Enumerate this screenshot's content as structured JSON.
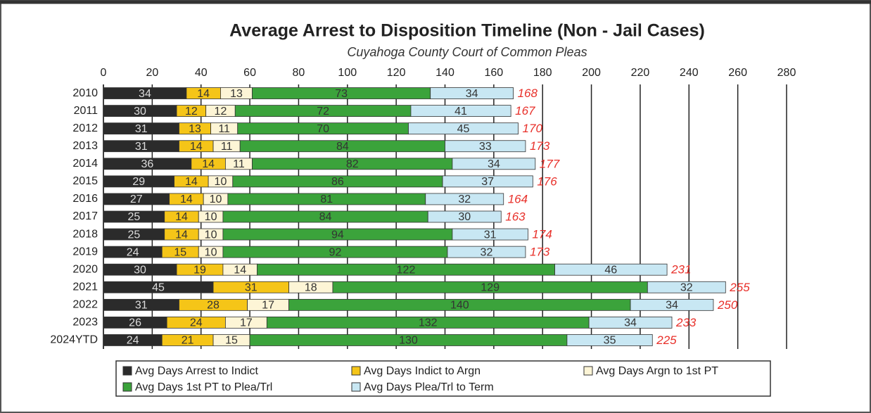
{
  "chart_data": {
    "type": "stacked-bar-horizontal",
    "title": "Average Arrest to Disposition Timeline (Non - Jail Cases)",
    "subtitle": "Cuyahoga County Court of Common Pleas",
    "categories": [
      "2010",
      "2011",
      "2012",
      "2013",
      "2014",
      "2015",
      "2016",
      "2017",
      "2018",
      "2019",
      "2020",
      "2021",
      "2022",
      "2023",
      "2024YTD"
    ],
    "series": [
      {
        "name": "Avg Days Arrest to Indict",
        "color": "#2b2b2b",
        "values": [
          34,
          30,
          31,
          31,
          36,
          29,
          27,
          25,
          25,
          24,
          30,
          45,
          31,
          26,
          24
        ]
      },
      {
        "name": "Avg Days Indict to Argn",
        "color": "#f5c518",
        "values": [
          14,
          12,
          13,
          14,
          14,
          14,
          14,
          14,
          14,
          15,
          19,
          31,
          28,
          24,
          21
        ]
      },
      {
        "name": "Avg Days Argn to 1st PT",
        "color": "#fdf5d6",
        "values": [
          13,
          12,
          11,
          11,
          11,
          10,
          10,
          10,
          10,
          10,
          14,
          18,
          17,
          17,
          15
        ]
      },
      {
        "name": "Avg Days 1st PT to Plea/Trl",
        "color": "#3ba33b",
        "values": [
          73,
          72,
          70,
          84,
          82,
          86,
          81,
          84,
          94,
          92,
          122,
          129,
          140,
          132,
          130
        ]
      },
      {
        "name": "Avg Days Plea/Trl to Term",
        "color": "#c8e7f3",
        "values": [
          34,
          41,
          45,
          33,
          34,
          37,
          32,
          30,
          31,
          32,
          46,
          32,
          34,
          34,
          35
        ]
      }
    ],
    "totals": [
      168,
      167,
      170,
      173,
      177,
      176,
      164,
      163,
      174,
      173,
      231,
      255,
      250,
      233,
      225
    ],
    "totals_color": "#e8302a",
    "xlim": [
      0,
      280
    ],
    "xticks": [
      0,
      20,
      40,
      60,
      80,
      100,
      120,
      140,
      160,
      180,
      200,
      220,
      240,
      260,
      280
    ],
    "grid": true
  }
}
